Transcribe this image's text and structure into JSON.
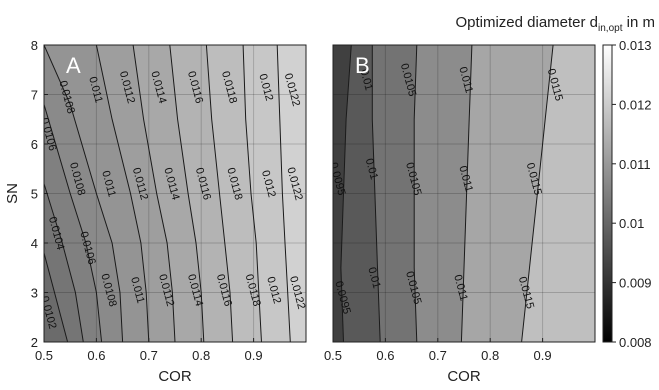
{
  "colorbar": {
    "title_main": "Optimized diameter d",
    "title_sub": "in,opt",
    "title_unit": " in m",
    "ticks": [
      "0.013",
      "0.012",
      "0.011",
      "0.01",
      "0.009",
      "0.008"
    ],
    "range": [
      0.008,
      0.013
    ],
    "colormap": "gray"
  },
  "chart_data": [
    {
      "type": "contour",
      "panel_label": "A",
      "xlabel": "COR",
      "ylabel": "SN",
      "xlim": [
        0.5,
        1.0
      ],
      "ylim": [
        2,
        8
      ],
      "xticks": [
        "0.5",
        "0.6",
        "0.7",
        "0.8",
        "0.9"
      ],
      "yticks": [
        "8",
        "7",
        "6",
        "5",
        "4",
        "3",
        "2"
      ],
      "grid": true,
      "contours": [
        {
          "level": 0.0102,
          "label": "0.0102",
          "points": [
            [
              0.5,
              3.8
            ],
            [
              0.52,
              3.0
            ],
            [
              0.545,
              2.0
            ]
          ]
        },
        {
          "level": 0.0104,
          "label": "0.0104",
          "points": [
            [
              0.5,
              5.2
            ],
            [
              0.535,
              4.0
            ],
            [
              0.56,
              3.0
            ],
            [
              0.575,
              2.0
            ]
          ]
        },
        {
          "level": 0.0106,
          "label": "0.0106",
          "points": [
            [
              0.5,
              6.8
            ],
            [
              0.55,
              5.0
            ],
            [
              0.58,
              4.0
            ],
            [
              0.6,
              3.0
            ],
            [
              0.61,
              2.0
            ]
          ]
        },
        {
          "level": 0.0108,
          "label": "0.0108",
          "points": [
            [
              0.5,
              8.0
            ],
            [
              0.55,
              6.8
            ],
            [
              0.6,
              5.0
            ],
            [
              0.63,
              4.0
            ],
            [
              0.645,
              3.0
            ],
            [
              0.65,
              2.0
            ]
          ]
        },
        {
          "level": 0.011,
          "label": "0.011",
          "points": [
            [
              0.6,
              8.0
            ],
            [
              0.63,
              6.5
            ],
            [
              0.665,
              5.0
            ],
            [
              0.685,
              4.0
            ],
            [
              0.695,
              3.0
            ],
            [
              0.7,
              2.0
            ]
          ]
        },
        {
          "level": 0.0112,
          "label": "0.0112",
          "points": [
            [
              0.67,
              8.0
            ],
            [
              0.69,
              6.5
            ],
            [
              0.715,
              5.0
            ],
            [
              0.735,
              4.0
            ],
            [
              0.745,
              3.0
            ],
            [
              0.75,
              2.0
            ]
          ]
        },
        {
          "level": 0.0114,
          "label": "0.0114",
          "points": [
            [
              0.74,
              8.0
            ],
            [
              0.755,
              6.5
            ],
            [
              0.775,
              5.0
            ],
            [
              0.79,
              4.0
            ],
            [
              0.8,
              3.0
            ],
            [
              0.805,
              2.0
            ]
          ]
        },
        {
          "level": 0.0116,
          "label": "0.0116",
          "points": [
            [
              0.81,
              8.0
            ],
            [
              0.82,
              6.5
            ],
            [
              0.835,
              5.0
            ],
            [
              0.845,
              4.0
            ],
            [
              0.855,
              3.0
            ],
            [
              0.86,
              2.0
            ]
          ]
        },
        {
          "level": 0.0118,
          "label": "0.0118",
          "points": [
            [
              0.88,
              8.0
            ],
            [
              0.885,
              6.5
            ],
            [
              0.895,
              5.0
            ],
            [
              0.905,
              4.0
            ],
            [
              0.91,
              3.0
            ],
            [
              0.915,
              2.0
            ]
          ]
        },
        {
          "level": 0.012,
          "label": "0.012",
          "points": [
            [
              0.945,
              8.0
            ],
            [
              0.95,
              6.5
            ],
            [
              0.955,
              5.0
            ],
            [
              0.96,
              4.0
            ],
            [
              0.965,
              3.0
            ],
            [
              0.97,
              2.0
            ]
          ]
        }
      ],
      "labels": [
        {
          "text": "0.0108",
          "x": 0.545,
          "y": 6.95
        },
        {
          "text": "0.011",
          "x": 0.6,
          "y": 7.1
        },
        {
          "text": "0.0112",
          "x": 0.66,
          "y": 7.15
        },
        {
          "text": "0.0114",
          "x": 0.72,
          "y": 7.15
        },
        {
          "text": "0.0116",
          "x": 0.79,
          "y": 7.15
        },
        {
          "text": "0.0118",
          "x": 0.855,
          "y": 7.15
        },
        {
          "text": "0.012",
          "x": 0.925,
          "y": 7.15
        },
        {
          "text": "0.0122",
          "x": 0.975,
          "y": 7.1
        },
        {
          "text": "0.0106",
          "x": 0.51,
          "y": 6.2
        },
        {
          "text": "0.0108",
          "x": 0.565,
          "y": 5.3
        },
        {
          "text": "0.011",
          "x": 0.625,
          "y": 5.2
        },
        {
          "text": "0.0112",
          "x": 0.685,
          "y": 5.2
        },
        {
          "text": "0.0114",
          "x": 0.745,
          "y": 5.2
        },
        {
          "text": "0.0116",
          "x": 0.805,
          "y": 5.2
        },
        {
          "text": "0.0118",
          "x": 0.865,
          "y": 5.2
        },
        {
          "text": "0.012",
          "x": 0.93,
          "y": 5.2
        },
        {
          "text": "0.0122",
          "x": 0.98,
          "y": 5.2
        },
        {
          "text": "0.0104",
          "x": 0.525,
          "y": 4.2
        },
        {
          "text": "0.0106",
          "x": 0.585,
          "y": 3.9
        },
        {
          "text": "0.0108",
          "x": 0.625,
          "y": 3.05
        },
        {
          "text": "0.011",
          "x": 0.68,
          "y": 3.05
        },
        {
          "text": "0.0112",
          "x": 0.735,
          "y": 3.05
        },
        {
          "text": "0.0114",
          "x": 0.79,
          "y": 3.05
        },
        {
          "text": "0.0116",
          "x": 0.845,
          "y": 3.05
        },
        {
          "text": "0.0118",
          "x": 0.9,
          "y": 3.05
        },
        {
          "text": "0.012",
          "x": 0.94,
          "y": 3.05
        },
        {
          "text": "0.0122",
          "x": 0.985,
          "y": 3.0
        },
        {
          "text": "0.0102",
          "x": 0.51,
          "y": 2.6
        }
      ]
    },
    {
      "type": "contour",
      "panel_label": "B",
      "xlabel": "COR",
      "ylabel": "",
      "xlim": [
        0.5,
        1.0
      ],
      "ylim": [
        2,
        8
      ],
      "xticks": [
        "0.5",
        "0.6",
        "0.7",
        "0.8",
        "0.9"
      ],
      "yticks": [],
      "grid": true,
      "contours": [
        {
          "level": 0.0095,
          "label": "0.0095",
          "points": [
            [
              0.535,
              8.0
            ],
            [
              0.525,
              6.5
            ],
            [
              0.52,
              5.0
            ],
            [
              0.515,
              3.5
            ],
            [
              0.52,
              2.0
            ]
          ]
        },
        {
          "level": 0.01,
          "label": "0.01",
          "points": [
            [
              0.575,
              8.0
            ],
            [
              0.575,
              6.5
            ],
            [
              0.58,
              5.0
            ],
            [
              0.585,
              3.5
            ],
            [
              0.59,
              2.0
            ]
          ]
        },
        {
          "level": 0.0105,
          "label": "0.0105",
          "points": [
            [
              0.66,
              8.0
            ],
            [
              0.655,
              6.5
            ],
            [
              0.655,
              5.0
            ],
            [
              0.655,
              3.5
            ],
            [
              0.66,
              2.0
            ]
          ]
        },
        {
          "level": 0.011,
          "label": "0.011",
          "points": [
            [
              0.765,
              8.0
            ],
            [
              0.76,
              6.5
            ],
            [
              0.755,
              5.0
            ],
            [
              0.75,
              3.5
            ],
            [
              0.745,
              2.0
            ]
          ]
        },
        {
          "level": 0.0115,
          "label": "0.0115",
          "points": [
            [
              0.92,
              8.0
            ],
            [
              0.905,
              6.5
            ],
            [
              0.89,
              5.0
            ],
            [
              0.875,
              3.5
            ],
            [
              0.86,
              2.0
            ]
          ]
        }
      ],
      "labels": [
        {
          "text": "0.01",
          "x": 0.565,
          "y": 7.3
        },
        {
          "text": "0.0105",
          "x": 0.645,
          "y": 7.3
        },
        {
          "text": "0.011",
          "x": 0.755,
          "y": 7.3
        },
        {
          "text": "0.0115",
          "x": 0.925,
          "y": 7.2
        },
        {
          "text": "0.0095",
          "x": 0.51,
          "y": 5.3
        },
        {
          "text": "0.01",
          "x": 0.575,
          "y": 5.5
        },
        {
          "text": "0.0105",
          "x": 0.655,
          "y": 5.3
        },
        {
          "text": "0.011",
          "x": 0.755,
          "y": 5.3
        },
        {
          "text": "0.0115",
          "x": 0.885,
          "y": 5.3
        },
        {
          "text": "0.0095",
          "x": 0.52,
          "y": 2.9
        },
        {
          "text": "0.01",
          "x": 0.58,
          "y": 3.3
        },
        {
          "text": "0.0105",
          "x": 0.655,
          "y": 3.1
        },
        {
          "text": "0.011",
          "x": 0.745,
          "y": 3.1
        },
        {
          "text": "0.0115",
          "x": 0.87,
          "y": 3.0
        }
      ]
    }
  ]
}
